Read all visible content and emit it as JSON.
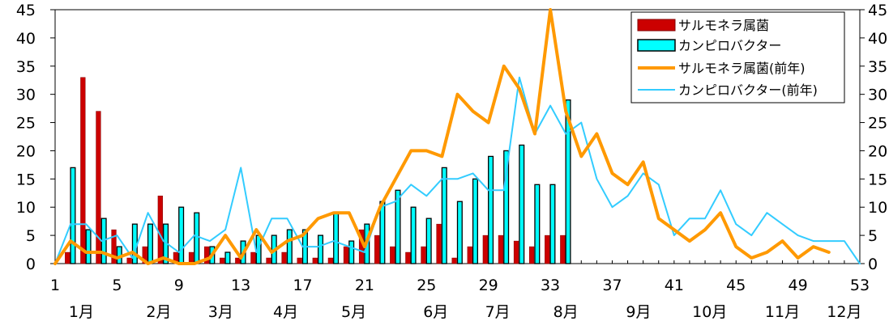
{
  "chart_data": {
    "type": "bar+line",
    "x_ticks": [
      "1",
      "5",
      "9",
      "13",
      "17",
      "21",
      "25",
      "29",
      "33",
      "37",
      "41",
      "45",
      "49",
      "53"
    ],
    "months": [
      "1月",
      "2月",
      "3月",
      "4月",
      "5月",
      "6月",
      "7月",
      "8月",
      "9月",
      "10月",
      "11月",
      "12月"
    ],
    "y_ticks": [
      "0",
      "5",
      "10",
      "15",
      "20",
      "25",
      "30",
      "35",
      "40",
      "45"
    ],
    "ylim": [
      0,
      45
    ],
    "xlim": [
      1,
      53
    ],
    "grid": false,
    "legend_position": "top-right",
    "series": [
      {
        "name": "サルモネラ属菌",
        "kind": "bar",
        "color": "#cc0000",
        "x": [
          1,
          2,
          3,
          4,
          5,
          6,
          7,
          8,
          9,
          10,
          11,
          12,
          13,
          14,
          15,
          16,
          17,
          18,
          19,
          20,
          21,
          22,
          23,
          24,
          25,
          26,
          27,
          28,
          29,
          30,
          31,
          32,
          33,
          34
        ],
        "values": [
          0,
          2,
          33,
          27,
          6,
          1,
          3,
          12,
          2,
          2,
          3,
          1,
          1,
          2,
          1,
          2,
          1,
          1,
          1,
          3,
          6,
          5,
          3,
          2,
          3,
          7,
          1,
          3,
          5,
          5,
          4,
          3,
          5,
          5
        ]
      },
      {
        "name": "カンピロバクター",
        "kind": "bar",
        "color": "#00ffff",
        "x": [
          1,
          2,
          3,
          4,
          5,
          6,
          7,
          8,
          9,
          10,
          11,
          12,
          13,
          14,
          15,
          16,
          17,
          18,
          19,
          20,
          21,
          22,
          23,
          24,
          25,
          26,
          27,
          28,
          29,
          30,
          31,
          32,
          33,
          34
        ],
        "values": [
          0,
          17,
          6,
          8,
          3,
          7,
          7,
          7,
          10,
          9,
          3,
          2,
          4,
          5,
          5,
          6,
          6,
          5,
          9,
          4,
          7,
          11,
          13,
          10,
          8,
          17,
          11,
          15,
          19,
          20,
          21,
          14,
          14,
          29
        ]
      },
      {
        "name": "サルモネラ属菌(前年)",
        "kind": "line",
        "color": "#ff9900",
        "x": [
          1,
          2,
          3,
          4,
          5,
          6,
          7,
          8,
          9,
          10,
          11,
          12,
          13,
          14,
          15,
          16,
          17,
          18,
          19,
          20,
          21,
          22,
          23,
          24,
          25,
          26,
          27,
          28,
          29,
          30,
          31,
          32,
          33,
          34,
          35,
          36,
          37,
          38,
          39,
          40,
          41,
          42,
          43,
          44,
          45,
          46,
          47,
          48,
          49,
          50,
          51,
          52
        ],
        "values": [
          0,
          4,
          2,
          2,
          1,
          2,
          0,
          1,
          0,
          0,
          1,
          5,
          1,
          6,
          2,
          4,
          5,
          8,
          9,
          9,
          3,
          10,
          15,
          20,
          20,
          19,
          30,
          27,
          25,
          35,
          31,
          23,
          45,
          27,
          19,
          23,
          16,
          14,
          18,
          8,
          6,
          4,
          6,
          9,
          3,
          1,
          2,
          4,
          1,
          3,
          2,
          null
        ]
      },
      {
        "name": "カンピロバクター(前年)",
        "kind": "line",
        "color": "#33ccff",
        "x": [
          1,
          2,
          3,
          4,
          5,
          6,
          7,
          8,
          9,
          10,
          11,
          12,
          13,
          14,
          15,
          16,
          17,
          18,
          19,
          20,
          21,
          22,
          23,
          24,
          25,
          26,
          27,
          28,
          29,
          30,
          31,
          32,
          33,
          34,
          35,
          36,
          37,
          38,
          39,
          40,
          41,
          42,
          43,
          44,
          45,
          46,
          47,
          48,
          49,
          50,
          51,
          52,
          53
        ],
        "values": [
          0,
          7,
          7,
          4,
          5,
          1,
          9,
          4,
          2,
          5,
          4,
          6,
          17,
          2,
          8,
          8,
          3,
          3,
          4,
          3,
          2,
          10,
          11,
          14,
          12,
          15,
          15,
          16,
          13,
          13,
          33,
          23,
          28,
          23,
          25,
          15,
          10,
          12,
          16,
          14,
          5,
          8,
          8,
          13,
          7,
          5,
          9,
          7,
          5,
          4,
          4,
          4,
          0
        ]
      }
    ]
  }
}
